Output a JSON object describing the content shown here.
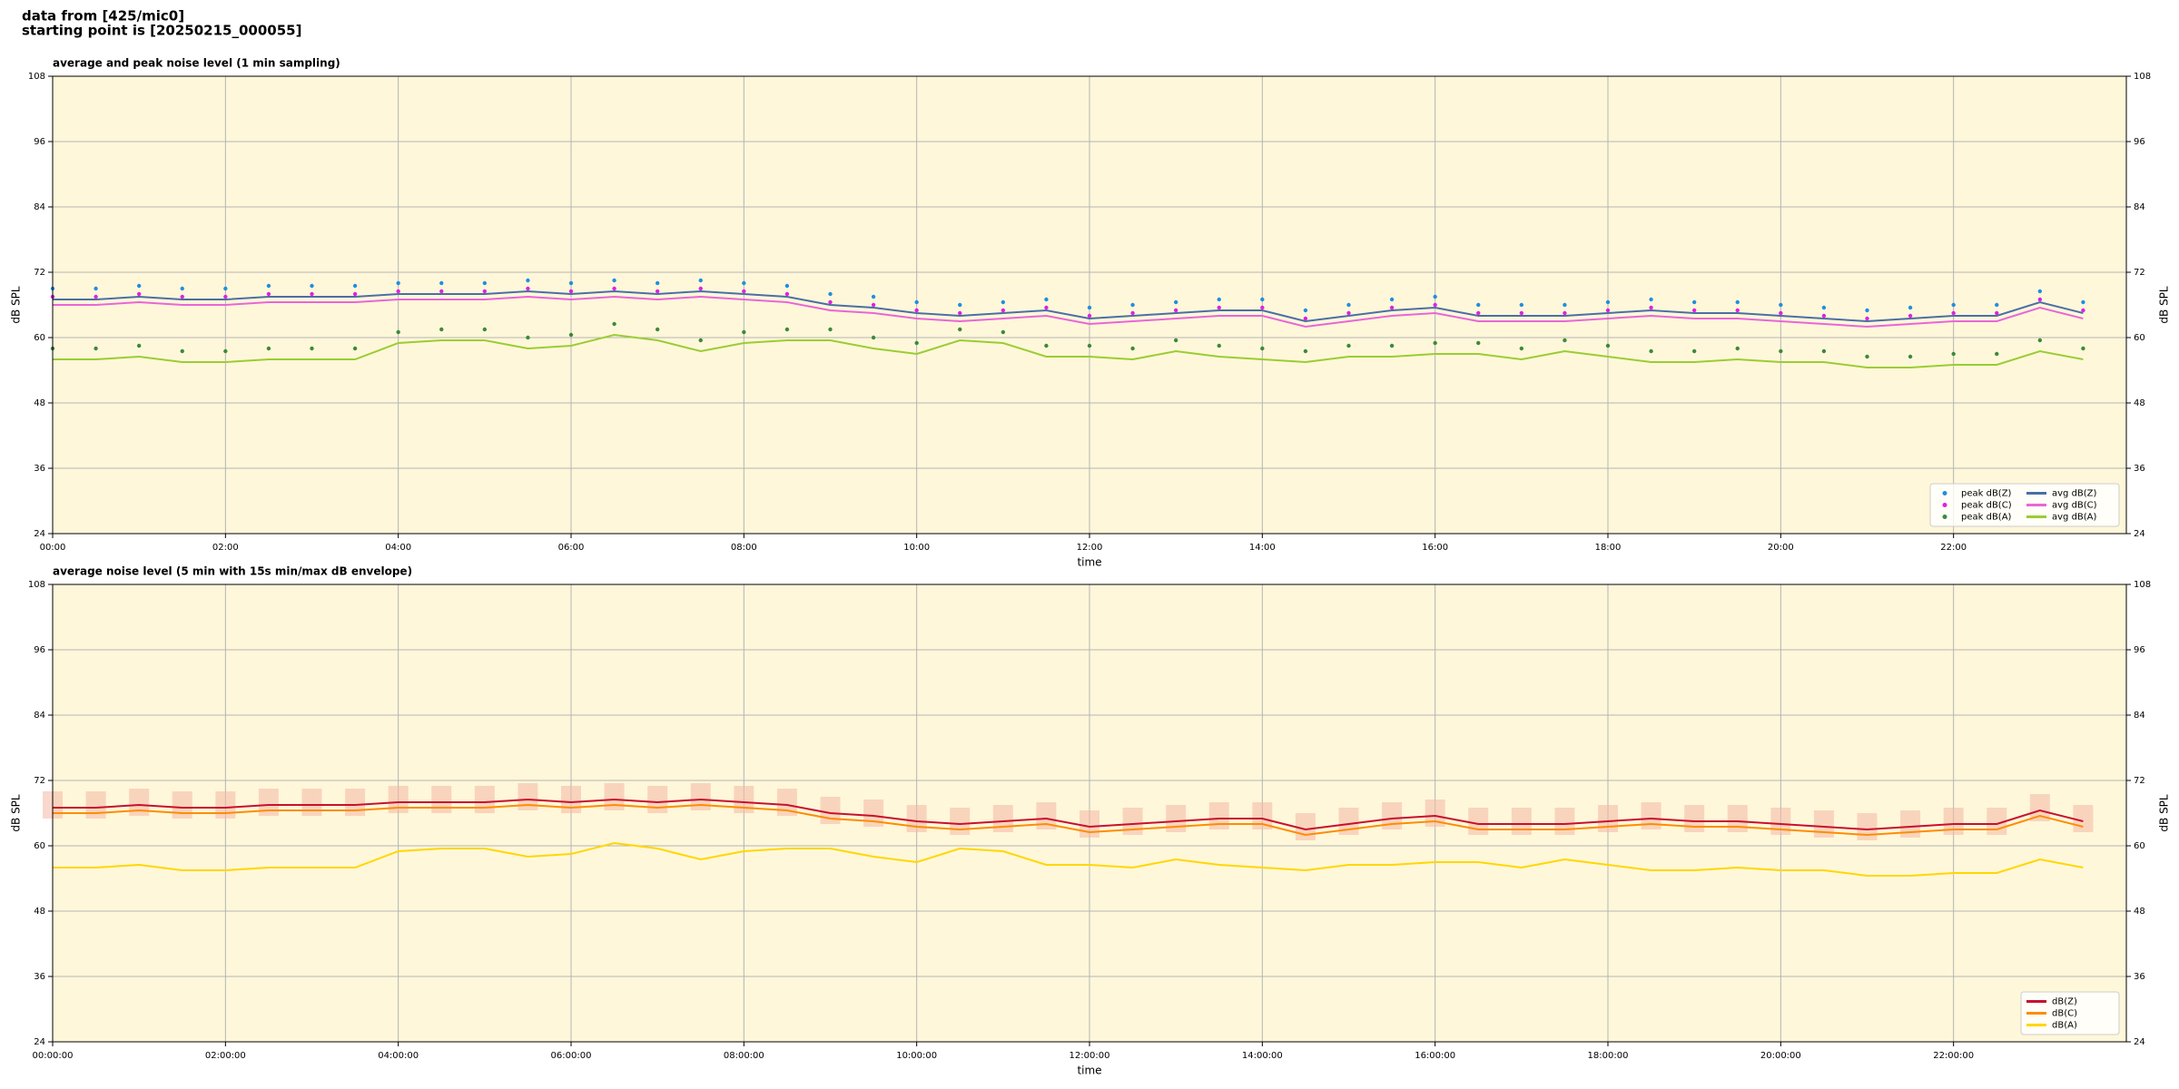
{
  "header": {
    "line1": "data from [425/mic0]",
    "line2": "starting point is [20250215_000055]"
  },
  "chart_data": [
    {
      "type": "line",
      "title": "average and peak noise level (1 min sampling)",
      "xlabel": "time",
      "ylabel": "dB SPL",
      "xlim": [
        0,
        24
      ],
      "ylim": [
        24,
        108
      ],
      "xticks": [
        {
          "value": 0,
          "label": "00:00"
        },
        {
          "value": 2,
          "label": "02:00"
        },
        {
          "value": 4,
          "label": "04:00"
        },
        {
          "value": 6,
          "label": "06:00"
        },
        {
          "value": 8,
          "label": "08:00"
        },
        {
          "value": 10,
          "label": "10:00"
        },
        {
          "value": 12,
          "label": "12:00"
        },
        {
          "value": 14,
          "label": "14:00"
        },
        {
          "value": 16,
          "label": "16:00"
        },
        {
          "value": 18,
          "label": "18:00"
        },
        {
          "value": 20,
          "label": "20:00"
        },
        {
          "value": 22,
          "label": "22:00"
        }
      ],
      "yticks": [
        24,
        36,
        48,
        60,
        72,
        84,
        96,
        108
      ],
      "grid": true,
      "legend": "lower right",
      "x": [
        0,
        0.5,
        1,
        1.5,
        2,
        2.5,
        3,
        3.5,
        4,
        4.5,
        5,
        5.5,
        6,
        6.5,
        7,
        7.5,
        8,
        8.5,
        9,
        9.5,
        10,
        10.5,
        11,
        11.5,
        12,
        12.5,
        13,
        13.5,
        14,
        14.5,
        15,
        15.5,
        16,
        16.5,
        17,
        17.5,
        18,
        18.5,
        19,
        19.5,
        20,
        20.5,
        21,
        21.5,
        22,
        22.5,
        23,
        23.5
      ],
      "series": [
        {
          "name": "peak dB(Z)",
          "color": "#1f8fe0",
          "marker": "dot",
          "values": [
            69,
            69,
            69.5,
            69,
            69,
            69.5,
            69.5,
            69.5,
            70,
            70,
            70,
            70.5,
            70,
            70.5,
            70,
            70.5,
            70,
            69.5,
            68,
            67.5,
            66.5,
            66,
            66.5,
            67,
            65.5,
            66,
            66.5,
            67,
            67,
            65,
            66,
            67,
            67.5,
            66,
            66,
            66,
            66.5,
            67,
            66.5,
            66.5,
            66,
            65.5,
            65,
            65.5,
            66,
            66,
            68.5,
            66.5
          ]
        },
        {
          "name": "peak dB(C)",
          "color": "#e020e0",
          "marker": "dot",
          "values": [
            67.5,
            67.5,
            68,
            67.5,
            67.5,
            68,
            68,
            68,
            68.5,
            68.5,
            68.5,
            69,
            68.5,
            69,
            68.5,
            69,
            68.5,
            68,
            66.5,
            66,
            65,
            64.5,
            65,
            65.5,
            64,
            64.5,
            65,
            65.5,
            65.5,
            63.5,
            64.5,
            65.5,
            66,
            64.5,
            64.5,
            64.5,
            65,
            65.5,
            65,
            65,
            64.5,
            64,
            63.5,
            64,
            64.5,
            64.5,
            67,
            65
          ]
        },
        {
          "name": "peak dB(A)",
          "color": "#3a8a3a",
          "marker": "dot",
          "values": [
            58,
            58,
            58.5,
            57.5,
            57.5,
            58,
            58,
            58,
            61,
            61.5,
            61.5,
            60,
            60.5,
            62.5,
            61.5,
            59.5,
            61,
            61.5,
            61.5,
            60,
            59,
            61.5,
            61,
            58.5,
            58.5,
            58,
            59.5,
            58.5,
            58,
            57.5,
            58.5,
            58.5,
            59,
            59,
            58,
            59.5,
            58.5,
            57.5,
            57.5,
            58,
            57.5,
            57.5,
            56.5,
            56.5,
            57,
            57,
            59.5,
            58
          ]
        },
        {
          "name": "avg dB(Z)",
          "color": "#4a6fa5",
          "marker": "line",
          "values": [
            67,
            67,
            67.5,
            67,
            67,
            67.5,
            67.5,
            67.5,
            68,
            68,
            68,
            68.5,
            68,
            68.5,
            68,
            68.5,
            68,
            67.5,
            66,
            65.5,
            64.5,
            64,
            64.5,
            65,
            63.5,
            64,
            64.5,
            65,
            65,
            63,
            64,
            65,
            65.5,
            64,
            64,
            64,
            64.5,
            65,
            64.5,
            64.5,
            64,
            63.5,
            63,
            63.5,
            64,
            64,
            66.5,
            64.5
          ]
        },
        {
          "name": "avg dB(C)",
          "color": "#e866d8",
          "marker": "line",
          "values": [
            66,
            66,
            66.5,
            66,
            66,
            66.5,
            66.5,
            66.5,
            67,
            67,
            67,
            67.5,
            67,
            67.5,
            67,
            67.5,
            67,
            66.5,
            65,
            64.5,
            63.5,
            63,
            63.5,
            64,
            62.5,
            63,
            63.5,
            64,
            64,
            62,
            63,
            64,
            64.5,
            63,
            63,
            63,
            63.5,
            64,
            63.5,
            63.5,
            63,
            62.5,
            62,
            62.5,
            63,
            63,
            65.5,
            63.5
          ]
        },
        {
          "name": "avg dB(A)",
          "color": "#9acd32",
          "marker": "line",
          "values": [
            56,
            56,
            56.5,
            55.5,
            55.5,
            56,
            56,
            56,
            59,
            59.5,
            59.5,
            58,
            58.5,
            60.5,
            59.5,
            57.5,
            59,
            59.5,
            59.5,
            58,
            57,
            59.5,
            59,
            56.5,
            56.5,
            56,
            57.5,
            56.5,
            56,
            55.5,
            56.5,
            56.5,
            57,
            57,
            56,
            57.5,
            56.5,
            55.5,
            55.5,
            56,
            55.5,
            55.5,
            54.5,
            54.5,
            55,
            55,
            57.5,
            56
          ]
        }
      ]
    },
    {
      "type": "line",
      "title": "average noise level (5 min with 15s min/max dB envelope)",
      "xlabel": "time",
      "ylabel": "dB SPL",
      "xlim": [
        0,
        24
      ],
      "ylim": [
        24,
        108
      ],
      "xticks": [
        {
          "value": 0,
          "label": "00:00:00"
        },
        {
          "value": 2,
          "label": "02:00:00"
        },
        {
          "value": 4,
          "label": "04:00:00"
        },
        {
          "value": 6,
          "label": "06:00:00"
        },
        {
          "value": 8,
          "label": "08:00:00"
        },
        {
          "value": 10,
          "label": "10:00:00"
        },
        {
          "value": 12,
          "label": "12:00:00"
        },
        {
          "value": 14,
          "label": "14:00:00"
        },
        {
          "value": 16,
          "label": "16:00:00"
        },
        {
          "value": 18,
          "label": "18:00:00"
        },
        {
          "value": 20,
          "label": "20:00:00"
        },
        {
          "value": 22,
          "label": "22:00:00"
        }
      ],
      "yticks": [
        24,
        36,
        48,
        60,
        72,
        84,
        96,
        108
      ],
      "grid": true,
      "legend": "lower right",
      "x": [
        0,
        0.5,
        1,
        1.5,
        2,
        2.5,
        3,
        3.5,
        4,
        4.5,
        5,
        5.5,
        6,
        6.5,
        7,
        7.5,
        8,
        8.5,
        9,
        9.5,
        10,
        10.5,
        11,
        11.5,
        12,
        12.5,
        13,
        13.5,
        14,
        14.5,
        15,
        15.5,
        16,
        16.5,
        17,
        17.5,
        18,
        18.5,
        19,
        19.5,
        20,
        20.5,
        21,
        21.5,
        22,
        22.5,
        23,
        23.5
      ],
      "envelope": {
        "color": "#f4b8a4",
        "low": [
          65,
          65,
          65.5,
          65,
          65,
          65.5,
          65.5,
          65.5,
          66,
          66,
          66,
          66.5,
          66,
          66.5,
          66,
          66.5,
          66,
          65.5,
          64,
          63.5,
          62.5,
          62,
          62.5,
          63,
          61.5,
          62,
          62.5,
          63,
          63,
          61,
          62,
          63,
          63.5,
          62,
          62,
          62,
          62.5,
          63,
          62.5,
          62.5,
          62,
          61.5,
          61,
          61.5,
          62,
          62,
          64.5,
          62.5
        ],
        "high": [
          70,
          70,
          70.5,
          70,
          70,
          70.5,
          70.5,
          70.5,
          71,
          71,
          71,
          71.5,
          71,
          71.5,
          71,
          71.5,
          71,
          70.5,
          69,
          68.5,
          67.5,
          67,
          67.5,
          68,
          66.5,
          67,
          67.5,
          68,
          68,
          66,
          67,
          68,
          68.5,
          67,
          67,
          67,
          67.5,
          68,
          67.5,
          67.5,
          67,
          66.5,
          66,
          66.5,
          67,
          67,
          69.5,
          67.5
        ]
      },
      "series": [
        {
          "name": "dB(Z)",
          "color": "#c8102e",
          "marker": "line",
          "values": [
            67,
            67,
            67.5,
            67,
            67,
            67.5,
            67.5,
            67.5,
            68,
            68,
            68,
            68.5,
            68,
            68.5,
            68,
            68.5,
            68,
            67.5,
            66,
            65.5,
            64.5,
            64,
            64.5,
            65,
            63.5,
            64,
            64.5,
            65,
            65,
            63,
            64,
            65,
            65.5,
            64,
            64,
            64,
            64.5,
            65,
            64.5,
            64.5,
            64,
            63.5,
            63,
            63.5,
            64,
            64,
            66.5,
            64.5
          ]
        },
        {
          "name": "dB(C)",
          "color": "#ff8c00",
          "marker": "line",
          "values": [
            66,
            66,
            66.5,
            66,
            66,
            66.5,
            66.5,
            66.5,
            67,
            67,
            67,
            67.5,
            67,
            67.5,
            67,
            67.5,
            67,
            66.5,
            65,
            64.5,
            63.5,
            63,
            63.5,
            64,
            62.5,
            63,
            63.5,
            64,
            64,
            62,
            63,
            64,
            64.5,
            63,
            63,
            63,
            63.5,
            64,
            63.5,
            63.5,
            63,
            62.5,
            62,
            62.5,
            63,
            63,
            65.5,
            63.5
          ]
        },
        {
          "name": "dB(A)",
          "color": "#ffd700",
          "marker": "line",
          "values": [
            56,
            56,
            56.5,
            55.5,
            55.5,
            56,
            56,
            56,
            59,
            59.5,
            59.5,
            58,
            58.5,
            60.5,
            59.5,
            57.5,
            59,
            59.5,
            59.5,
            58,
            57,
            59.5,
            59,
            56.5,
            56.5,
            56,
            57.5,
            56.5,
            56,
            55.5,
            56.5,
            56.5,
            57,
            57,
            56,
            57.5,
            56.5,
            55.5,
            55.5,
            56,
            55.5,
            55.5,
            54.5,
            54.5,
            55,
            55,
            57.5,
            56
          ]
        }
      ]
    }
  ]
}
